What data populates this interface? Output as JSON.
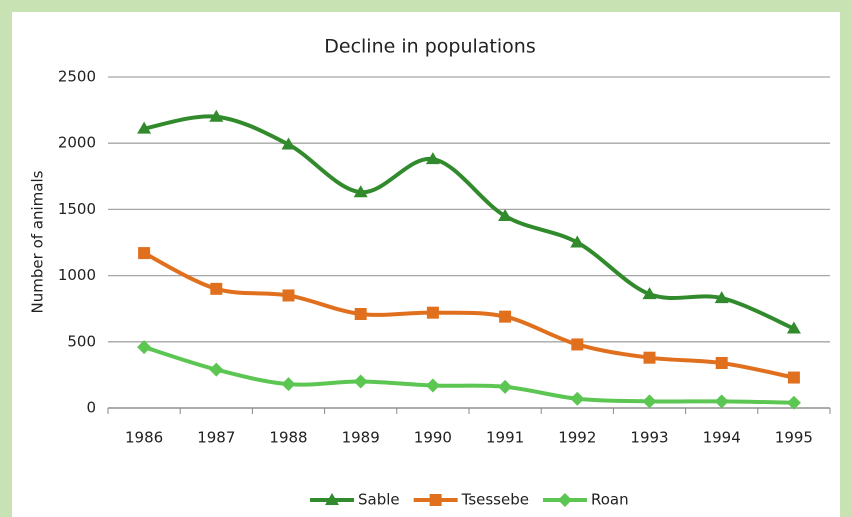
{
  "chart_data": {
    "type": "line",
    "title": "Decline in populations",
    "y_label": "Number of animals",
    "categories": [
      "1986",
      "1987",
      "1988",
      "1989",
      "1990",
      "1991",
      "1992",
      "1993",
      "1994",
      "1995"
    ],
    "series": [
      {
        "name": "Sable",
        "color": "#318a2c",
        "marker": "triangle",
        "values": [
          2110,
          2200,
          1990,
          1630,
          1880,
          1450,
          1250,
          860,
          830,
          600
        ]
      },
      {
        "name": "Tsessebe",
        "color": "#e0701e",
        "marker": "square",
        "values": [
          1170,
          900,
          850,
          710,
          720,
          690,
          480,
          380,
          340,
          230
        ]
      },
      {
        "name": "Roan",
        "color": "#5cc653",
        "marker": "diamond",
        "values": [
          460,
          290,
          180,
          200,
          170,
          160,
          70,
          50,
          50,
          40
        ]
      }
    ],
    "ylim": [
      0,
      2500
    ],
    "yticks": [
      0,
      500,
      1000,
      1500,
      2000,
      2500
    ],
    "grid": true,
    "smooth": true,
    "legend": "bottom"
  }
}
